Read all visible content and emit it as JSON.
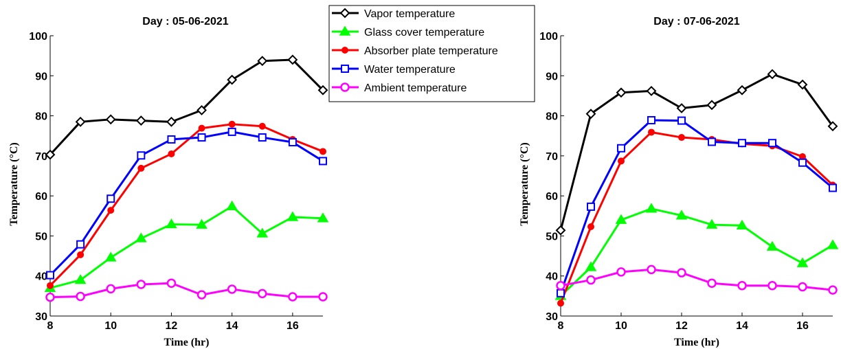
{
  "chart_data": [
    {
      "type": "line",
      "title": "Day : 05-06-2021",
      "xlabel": "Time (hr)",
      "ylabel": "Temperature (°C)",
      "xlim": [
        8,
        17
      ],
      "ylim": [
        30,
        100
      ],
      "xticks": [
        8,
        10,
        12,
        14,
        16
      ],
      "yticks": [
        30,
        40,
        50,
        60,
        70,
        80,
        90,
        100
      ],
      "x": [
        8,
        9,
        10,
        11,
        12,
        13,
        14,
        15,
        16,
        17
      ],
      "series": [
        {
          "name": "Vapor temperature",
          "color": "#000000",
          "marker": "diamond",
          "values": [
            70.3,
            78.5,
            79.1,
            78.8,
            78.5,
            81.4,
            89.0,
            93.7,
            94.0,
            86.4
          ]
        },
        {
          "name": "Glass cover temperature",
          "color": "#00ff00",
          "marker": "triangle",
          "values": [
            37.0,
            39.0,
            44.6,
            49.4,
            52.9,
            52.8,
            57.4,
            50.6,
            54.7,
            54.4
          ]
        },
        {
          "name": "Absorber plate temperature",
          "color": "#ff0000",
          "marker": "dot",
          "values": [
            37.6,
            45.3,
            56.4,
            66.9,
            70.5,
            76.9,
            77.9,
            77.4,
            74.1,
            71.1
          ]
        },
        {
          "name": "Water temperature",
          "color": "#0000ff",
          "marker": "square",
          "values": [
            40.2,
            47.9,
            59.3,
            70.1,
            74.1,
            74.6,
            76.0,
            74.6,
            73.4,
            68.7
          ]
        },
        {
          "name": "Ambient temperature",
          "color": "#ff00ff",
          "marker": "circle",
          "values": [
            34.7,
            34.9,
            36.8,
            37.9,
            38.2,
            35.3,
            36.7,
            35.6,
            34.8,
            34.8
          ]
        }
      ]
    },
    {
      "type": "line",
      "title": "Day : 07-06-2021",
      "xlabel": "Time (hr)",
      "ylabel": "Temperature (°C)",
      "xlim": [
        8,
        17
      ],
      "ylim": [
        30,
        100
      ],
      "xticks": [
        8,
        10,
        12,
        14,
        16
      ],
      "yticks": [
        30,
        40,
        50,
        60,
        70,
        80,
        90,
        100
      ],
      "x": [
        8,
        9,
        10,
        11,
        12,
        13,
        14,
        15,
        16,
        17
      ],
      "series": [
        {
          "name": "Vapor temperature",
          "color": "#000000",
          "marker": "diamond",
          "values": [
            51.4,
            80.5,
            85.8,
            86.2,
            81.9,
            82.7,
            86.4,
            90.4,
            87.8,
            77.4
          ]
        },
        {
          "name": "Glass cover temperature",
          "color": "#00ff00",
          "marker": "triangle",
          "values": [
            35.0,
            42.2,
            54.0,
            56.8,
            55.1,
            52.8,
            52.6,
            47.3,
            43.2,
            47.7
          ]
        },
        {
          "name": "Absorber plate temperature",
          "color": "#ff0000",
          "marker": "dot",
          "values": [
            33.2,
            52.3,
            68.7,
            75.9,
            74.6,
            74.1,
            73.0,
            72.5,
            69.8,
            62.7
          ]
        },
        {
          "name": "Water temperature",
          "color": "#0000ff",
          "marker": "square",
          "values": [
            35.7,
            57.3,
            71.9,
            78.9,
            78.8,
            73.5,
            73.2,
            73.2,
            68.3,
            62.0
          ]
        },
        {
          "name": "Ambient temperature",
          "color": "#ff00ff",
          "marker": "circle",
          "values": [
            37.6,
            39.0,
            41.0,
            41.6,
            40.8,
            38.2,
            37.6,
            37.6,
            37.3,
            36.5
          ]
        }
      ]
    }
  ],
  "legend": {
    "placement": "top-center",
    "entries": [
      "Vapor temperature",
      "Glass cover temperature",
      "Absorber plate temperature",
      "Water temperature",
      "Ambient temperature"
    ]
  }
}
